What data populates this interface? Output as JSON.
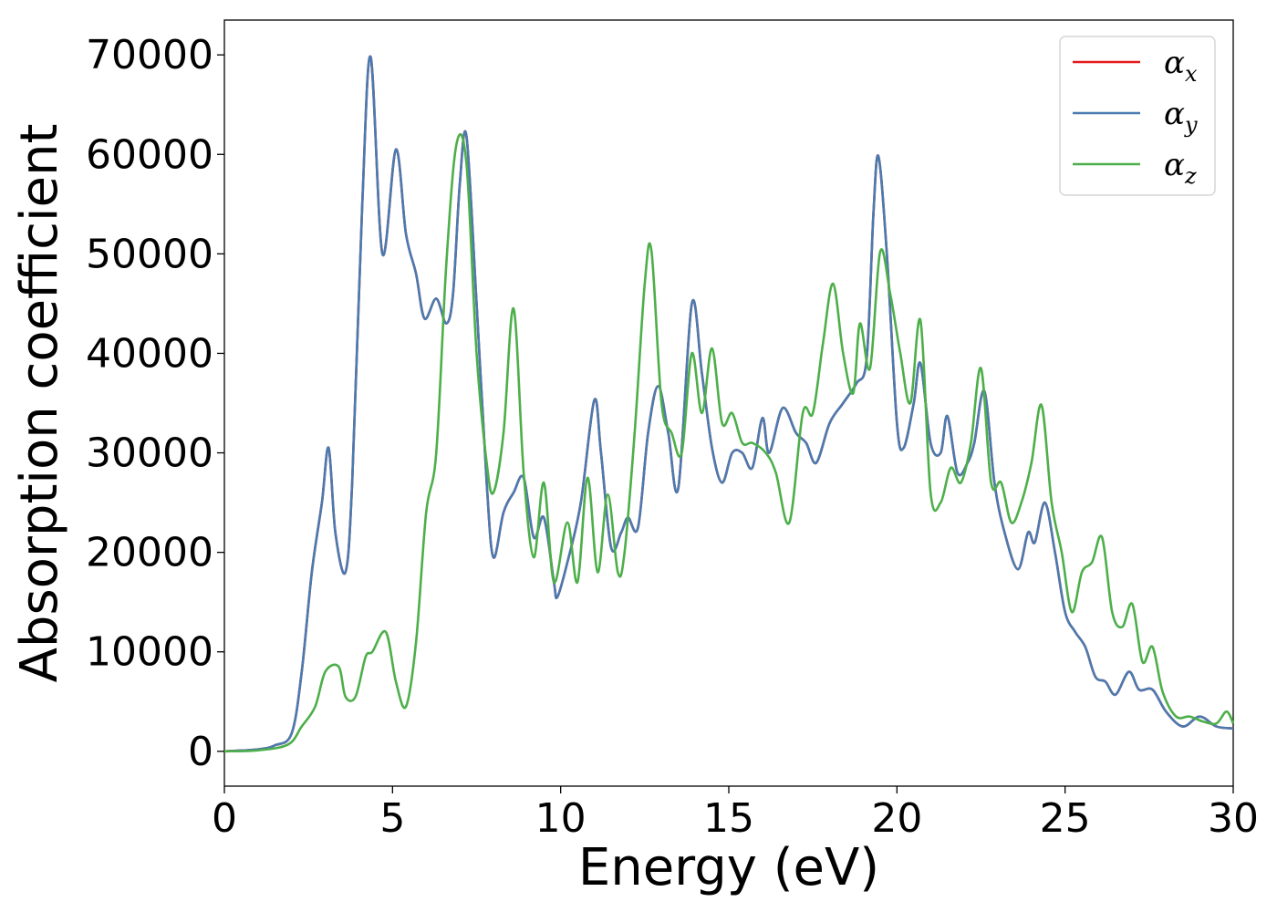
{
  "chart_data": {
    "type": "line",
    "title": "",
    "xlabel": "Energy (eV)",
    "ylabel": "Absorption coefficient",
    "xlim": [
      0,
      30
    ],
    "ylim": [
      -3500,
      73500
    ],
    "xticks": [
      0,
      5,
      10,
      15,
      20,
      25,
      30
    ],
    "yticks": [
      0,
      10000,
      20000,
      30000,
      40000,
      50000,
      60000,
      70000
    ],
    "grid": false,
    "legend_position": "top-right",
    "series": [
      {
        "name": "α",
        "subscript": "x",
        "color": "#e41a1c",
        "x": [
          0,
          1,
          1.5,
          2,
          2.3,
          2.6,
          2.9,
          3.1,
          3.3,
          3.6,
          3.8,
          4.1,
          4.35,
          4.7,
          5.1,
          5.4,
          5.7,
          5.95,
          6.3,
          6.6,
          6.8,
          7.0,
          7.2,
          7.5,
          7.8,
          8.0,
          8.3,
          8.6,
          8.9,
          9.2,
          9.5,
          9.8,
          9.9,
          10.2,
          10.6,
          11.0,
          11.2,
          11.5,
          11.8,
          12.0,
          12.3,
          12.6,
          12.9,
          13.2,
          13.5,
          13.9,
          14.2,
          14.5,
          14.8,
          15.1,
          15.4,
          15.7,
          16.0,
          16.2,
          16.6,
          17.0,
          17.3,
          17.6,
          18.0,
          18.4,
          18.8,
          19.1,
          19.3,
          19.45,
          19.7,
          20.0,
          20.2,
          20.5,
          20.7,
          21.0,
          21.3,
          21.5,
          21.8,
          22.1,
          22.3,
          22.6,
          22.9,
          23.2,
          23.6,
          23.9,
          24.1,
          24.4,
          24.7,
          25.0,
          25.3,
          25.6,
          25.9,
          26.2,
          26.5,
          26.9,
          27.2,
          27.6,
          28.0,
          28.5,
          29.0,
          29.5,
          30.0
        ],
        "y": [
          0,
          200,
          600,
          1800,
          8000,
          18000,
          25000,
          30500,
          22000,
          18000,
          27000,
          55000,
          69800,
          50000,
          60500,
          52000,
          48000,
          43500,
          45500,
          43000,
          46000,
          57000,
          61800,
          45000,
          27000,
          19500,
          24000,
          26000,
          27500,
          21500,
          23500,
          17000,
          15500,
          19000,
          25000,
          35300,
          30000,
          20500,
          22000,
          23500,
          22500,
          32000,
          36700,
          32000,
          26500,
          45000,
          38000,
          30500,
          27000,
          30000,
          30000,
          28500,
          33500,
          30000,
          34500,
          32000,
          31000,
          29000,
          33000,
          35000,
          37000,
          39500,
          54000,
          59800,
          50000,
          33000,
          30500,
          35000,
          39000,
          31000,
          30000,
          33700,
          28000,
          29000,
          31000,
          36200,
          27000,
          22000,
          18300,
          22000,
          21000,
          25000,
          20000,
          14000,
          12000,
          10500,
          7500,
          7000,
          5700,
          8000,
          6200,
          6200,
          4000,
          2500,
          3500,
          2500,
          2300
        ]
      },
      {
        "name": "α",
        "subscript": "y",
        "color": "#4a7bb0",
        "x": [
          0,
          1,
          1.5,
          2,
          2.3,
          2.6,
          2.9,
          3.1,
          3.3,
          3.6,
          3.8,
          4.1,
          4.35,
          4.7,
          5.1,
          5.4,
          5.7,
          5.95,
          6.3,
          6.6,
          6.8,
          7.0,
          7.2,
          7.5,
          7.8,
          8.0,
          8.3,
          8.6,
          8.9,
          9.2,
          9.5,
          9.8,
          9.9,
          10.2,
          10.6,
          11.0,
          11.2,
          11.5,
          11.8,
          12.0,
          12.3,
          12.6,
          12.9,
          13.2,
          13.5,
          13.9,
          14.2,
          14.5,
          14.8,
          15.1,
          15.4,
          15.7,
          16.0,
          16.2,
          16.6,
          17.0,
          17.3,
          17.6,
          18.0,
          18.4,
          18.8,
          19.1,
          19.3,
          19.45,
          19.7,
          20.0,
          20.2,
          20.5,
          20.7,
          21.0,
          21.3,
          21.5,
          21.8,
          22.1,
          22.3,
          22.6,
          22.9,
          23.2,
          23.6,
          23.9,
          24.1,
          24.4,
          24.7,
          25.0,
          25.3,
          25.6,
          25.9,
          26.2,
          26.5,
          26.9,
          27.2,
          27.6,
          28.0,
          28.5,
          29.0,
          29.5,
          30.0
        ],
        "y": [
          0,
          200,
          600,
          1800,
          8000,
          18000,
          25000,
          30500,
          22000,
          18000,
          27000,
          55000,
          69800,
          50000,
          60500,
          52000,
          48000,
          43500,
          45500,
          43000,
          46000,
          57000,
          61800,
          45000,
          27000,
          19500,
          24000,
          26000,
          27500,
          21500,
          23500,
          17000,
          15500,
          19000,
          25000,
          35300,
          30000,
          20500,
          22000,
          23500,
          22500,
          32000,
          36700,
          32000,
          26500,
          45000,
          38000,
          30500,
          27000,
          30000,
          30000,
          28500,
          33500,
          30000,
          34500,
          32000,
          31000,
          29000,
          33000,
          35000,
          37000,
          39500,
          54000,
          59800,
          50000,
          33000,
          30500,
          35000,
          39000,
          31000,
          30000,
          33700,
          28000,
          29000,
          31000,
          36200,
          27000,
          22000,
          18300,
          22000,
          21000,
          25000,
          20000,
          14000,
          12000,
          10500,
          7500,
          7000,
          5700,
          8000,
          6200,
          6200,
          4000,
          2500,
          3500,
          2500,
          2300
        ]
      },
      {
        "name": "α",
        "subscript": "z",
        "color": "#4daf4a",
        "x": [
          0,
          1,
          1.9,
          2.3,
          2.7,
          3.0,
          3.4,
          3.6,
          3.9,
          4.2,
          4.4,
          4.8,
          5.1,
          5.4,
          5.7,
          6.0,
          6.3,
          6.6,
          6.9,
          7.2,
          7.5,
          7.8,
          8.0,
          8.3,
          8.6,
          8.9,
          9.2,
          9.5,
          9.8,
          10.2,
          10.5,
          10.8,
          11.1,
          11.4,
          11.7,
          11.9,
          12.2,
          12.5,
          12.7,
          13.0,
          13.3,
          13.6,
          13.9,
          14.2,
          14.5,
          14.8,
          15.1,
          15.4,
          15.7,
          16.1,
          16.4,
          16.8,
          17.2,
          17.5,
          17.8,
          18.1,
          18.4,
          18.7,
          18.9,
          19.2,
          19.5,
          19.8,
          20.1,
          20.4,
          20.7,
          21.0,
          21.3,
          21.6,
          21.9,
          22.2,
          22.5,
          22.8,
          23.1,
          23.4,
          23.7,
          24.0,
          24.3,
          24.6,
          24.9,
          25.2,
          25.5,
          25.8,
          26.1,
          26.4,
          26.7,
          27.0,
          27.3,
          27.6,
          27.9,
          28.3,
          28.7,
          29.1,
          29.5,
          29.8,
          30.0
        ],
        "y": [
          0,
          100,
          700,
          2500,
          4500,
          8000,
          8500,
          5500,
          5500,
          9500,
          10000,
          12000,
          7000,
          4500,
          11000,
          24000,
          30000,
          49000,
          61000,
          59000,
          40000,
          29000,
          26000,
          32000,
          44500,
          28000,
          19500,
          27000,
          17000,
          23000,
          17000,
          27500,
          18000,
          25800,
          18000,
          20000,
          32000,
          47000,
          50300,
          35000,
          32000,
          30000,
          40000,
          34000,
          40500,
          33000,
          34000,
          31000,
          31000,
          30000,
          28000,
          23000,
          34000,
          34000,
          41000,
          47000,
          40000,
          36000,
          43000,
          38500,
          50200,
          46000,
          40000,
          35000,
          43300,
          26000,
          25000,
          28500,
          27000,
          31000,
          38500,
          27000,
          27000,
          23000,
          25000,
          29000,
          34800,
          25000,
          20000,
          14000,
          18000,
          19000,
          21500,
          14000,
          12500,
          14800,
          9000,
          10500,
          6000,
          3500,
          3500,
          3000,
          2800,
          4000,
          2800
        ]
      }
    ]
  }
}
